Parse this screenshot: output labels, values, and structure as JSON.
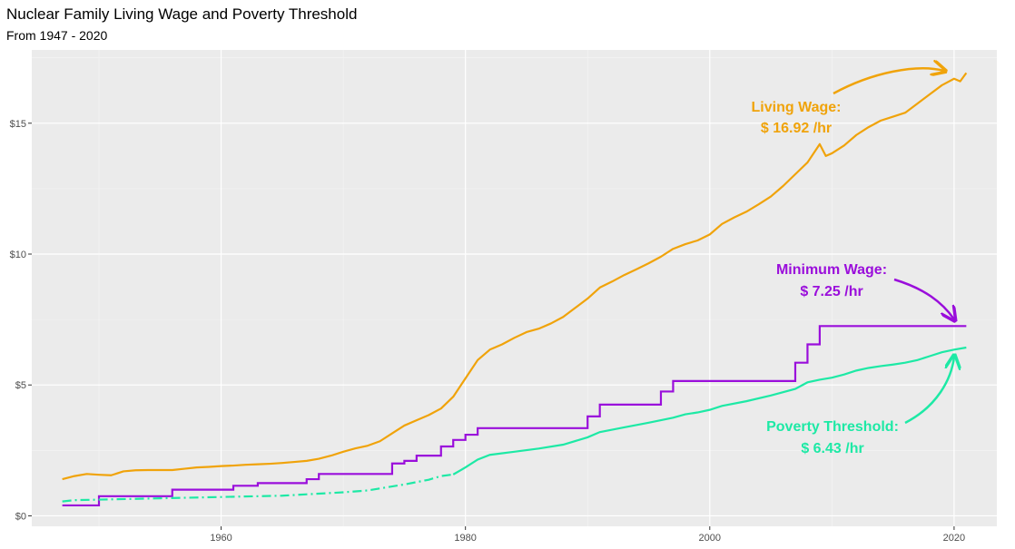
{
  "chart_data": {
    "type": "line",
    "title": "Nuclear Family Living Wage and Poverty Threshold",
    "subtitle": "From 1947 - 2020",
    "xlabel": "",
    "ylabel": "",
    "xlim": [
      1944.5,
      2023.5
    ],
    "ylim": [
      -0.4,
      17.8
    ],
    "x_ticks": [
      1960,
      1980,
      2000,
      2020
    ],
    "y_ticks": [
      {
        "value": 0,
        "label": "$0"
      },
      {
        "value": 5,
        "label": "$5"
      },
      {
        "value": 10,
        "label": "$10"
      },
      {
        "value": 15,
        "label": "$15"
      }
    ],
    "grid": true,
    "series": [
      {
        "name": "Living Wage",
        "color": "#f0a30a",
        "style": "solid",
        "step": false,
        "points": [
          [
            1947,
            1.4
          ],
          [
            1948,
            1.52
          ],
          [
            1949,
            1.6
          ],
          [
            1950,
            1.57
          ],
          [
            1951,
            1.55
          ],
          [
            1952,
            1.7
          ],
          [
            1953,
            1.74
          ],
          [
            1954,
            1.75
          ],
          [
            1955,
            1.75
          ],
          [
            1956,
            1.75
          ],
          [
            1957,
            1.8
          ],
          [
            1958,
            1.85
          ],
          [
            1959,
            1.87
          ],
          [
            1960,
            1.9
          ],
          [
            1961,
            1.92
          ],
          [
            1962,
            1.95
          ],
          [
            1963,
            1.97
          ],
          [
            1964,
            1.99
          ],
          [
            1965,
            2.02
          ],
          [
            1966,
            2.06
          ],
          [
            1967,
            2.1
          ],
          [
            1968,
            2.18
          ],
          [
            1969,
            2.3
          ],
          [
            1970,
            2.45
          ],
          [
            1971,
            2.58
          ],
          [
            1972,
            2.68
          ],
          [
            1973,
            2.85
          ],
          [
            1974,
            3.15
          ],
          [
            1975,
            3.45
          ],
          [
            1976,
            3.65
          ],
          [
            1977,
            3.85
          ],
          [
            1978,
            4.1
          ],
          [
            1979,
            4.55
          ],
          [
            1980,
            5.25
          ],
          [
            1981,
            5.95
          ],
          [
            1982,
            6.35
          ],
          [
            1983,
            6.55
          ],
          [
            1984,
            6.8
          ],
          [
            1985,
            7.02
          ],
          [
            1986,
            7.15
          ],
          [
            1987,
            7.35
          ],
          [
            1988,
            7.6
          ],
          [
            1989,
            7.95
          ],
          [
            1990,
            8.3
          ],
          [
            1991,
            8.72
          ],
          [
            1992,
            8.95
          ],
          [
            1993,
            9.2
          ],
          [
            1994,
            9.42
          ],
          [
            1995,
            9.65
          ],
          [
            1996,
            9.9
          ],
          [
            1997,
            10.2
          ],
          [
            1998,
            10.38
          ],
          [
            1999,
            10.52
          ],
          [
            2000,
            10.75
          ],
          [
            2001,
            11.15
          ],
          [
            2002,
            11.4
          ],
          [
            2003,
            11.62
          ],
          [
            2004,
            11.9
          ],
          [
            2005,
            12.2
          ],
          [
            2006,
            12.6
          ],
          [
            2007,
            13.05
          ],
          [
            2008,
            13.5
          ],
          [
            2009,
            14.2
          ],
          [
            2009.5,
            13.75
          ],
          [
            2010,
            13.85
          ],
          [
            2011,
            14.15
          ],
          [
            2012,
            14.55
          ],
          [
            2013,
            14.85
          ],
          [
            2014,
            15.1
          ],
          [
            2015,
            15.25
          ],
          [
            2016,
            15.4
          ],
          [
            2017,
            15.75
          ],
          [
            2018,
            16.1
          ],
          [
            2019,
            16.45
          ],
          [
            2020,
            16.7
          ],
          [
            2020.5,
            16.6
          ],
          [
            2021,
            16.92
          ]
        ]
      },
      {
        "name": "Minimum Wage",
        "color": "#9a0edb",
        "style": "solid",
        "step": true,
        "points": [
          [
            1947,
            0.4
          ],
          [
            1950,
            0.75
          ],
          [
            1956,
            1.0
          ],
          [
            1961,
            1.15
          ],
          [
            1963,
            1.25
          ],
          [
            1967,
            1.4
          ],
          [
            1968,
            1.6
          ],
          [
            1974,
            2.0
          ],
          [
            1975,
            2.1
          ],
          [
            1976,
            2.3
          ],
          [
            1978,
            2.65
          ],
          [
            1979,
            2.9
          ],
          [
            1980,
            3.1
          ],
          [
            1981,
            3.35
          ],
          [
            1990,
            3.8
          ],
          [
            1991,
            4.25
          ],
          [
            1996,
            4.75
          ],
          [
            1997,
            5.15
          ],
          [
            2007,
            5.85
          ],
          [
            2008,
            6.55
          ],
          [
            2009,
            7.25
          ],
          [
            2021,
            7.25
          ]
        ]
      },
      {
        "name": "Poverty Threshold",
        "color": "#1de9a5",
        "style": "dashed-to-solid",
        "step": false,
        "points": [
          [
            1947,
            0.55
          ],
          [
            1948,
            0.6
          ],
          [
            1950,
            0.62
          ],
          [
            1955,
            0.67
          ],
          [
            1960,
            0.72
          ],
          [
            1965,
            0.77
          ],
          [
            1970,
            0.9
          ],
          [
            1972,
            0.97
          ],
          [
            1975,
            1.2
          ],
          [
            1977,
            1.38
          ],
          [
            1978,
            1.52
          ],
          [
            1979,
            1.58
          ],
          [
            1980,
            1.85
          ],
          [
            1981,
            2.15
          ],
          [
            1982,
            2.33
          ],
          [
            1984,
            2.45
          ],
          [
            1986,
            2.57
          ],
          [
            1988,
            2.72
          ],
          [
            1990,
            3.0
          ],
          [
            1991,
            3.2
          ],
          [
            1993,
            3.38
          ],
          [
            1995,
            3.56
          ],
          [
            1997,
            3.75
          ],
          [
            1998,
            3.88
          ],
          [
            1999,
            3.95
          ],
          [
            2000,
            4.05
          ],
          [
            2001,
            4.2
          ],
          [
            2003,
            4.38
          ],
          [
            2005,
            4.6
          ],
          [
            2007,
            4.85
          ],
          [
            2008,
            5.1
          ],
          [
            2009,
            5.2
          ],
          [
            2010,
            5.28
          ],
          [
            2011,
            5.4
          ],
          [
            2012,
            5.55
          ],
          [
            2013,
            5.65
          ],
          [
            2014,
            5.72
          ],
          [
            2015,
            5.78
          ],
          [
            2016,
            5.85
          ],
          [
            2017,
            5.95
          ],
          [
            2018,
            6.1
          ],
          [
            2019,
            6.25
          ],
          [
            2020,
            6.35
          ],
          [
            2021,
            6.43
          ]
        ]
      }
    ],
    "annotations": [
      {
        "series": "Living Wage",
        "line1": "Living Wage:",
        "line2": "$ 16.92 /hr",
        "color": "#f0a30a"
      },
      {
        "series": "Minimum Wage",
        "line1": "Minimum Wage:",
        "line2": "$ 7.25 /hr",
        "color": "#9a0edb"
      },
      {
        "series": "Poverty Threshold",
        "line1": "Poverty Threshold:",
        "line2": "$ 6.43 /hr",
        "color": "#1de9a5"
      }
    ]
  }
}
